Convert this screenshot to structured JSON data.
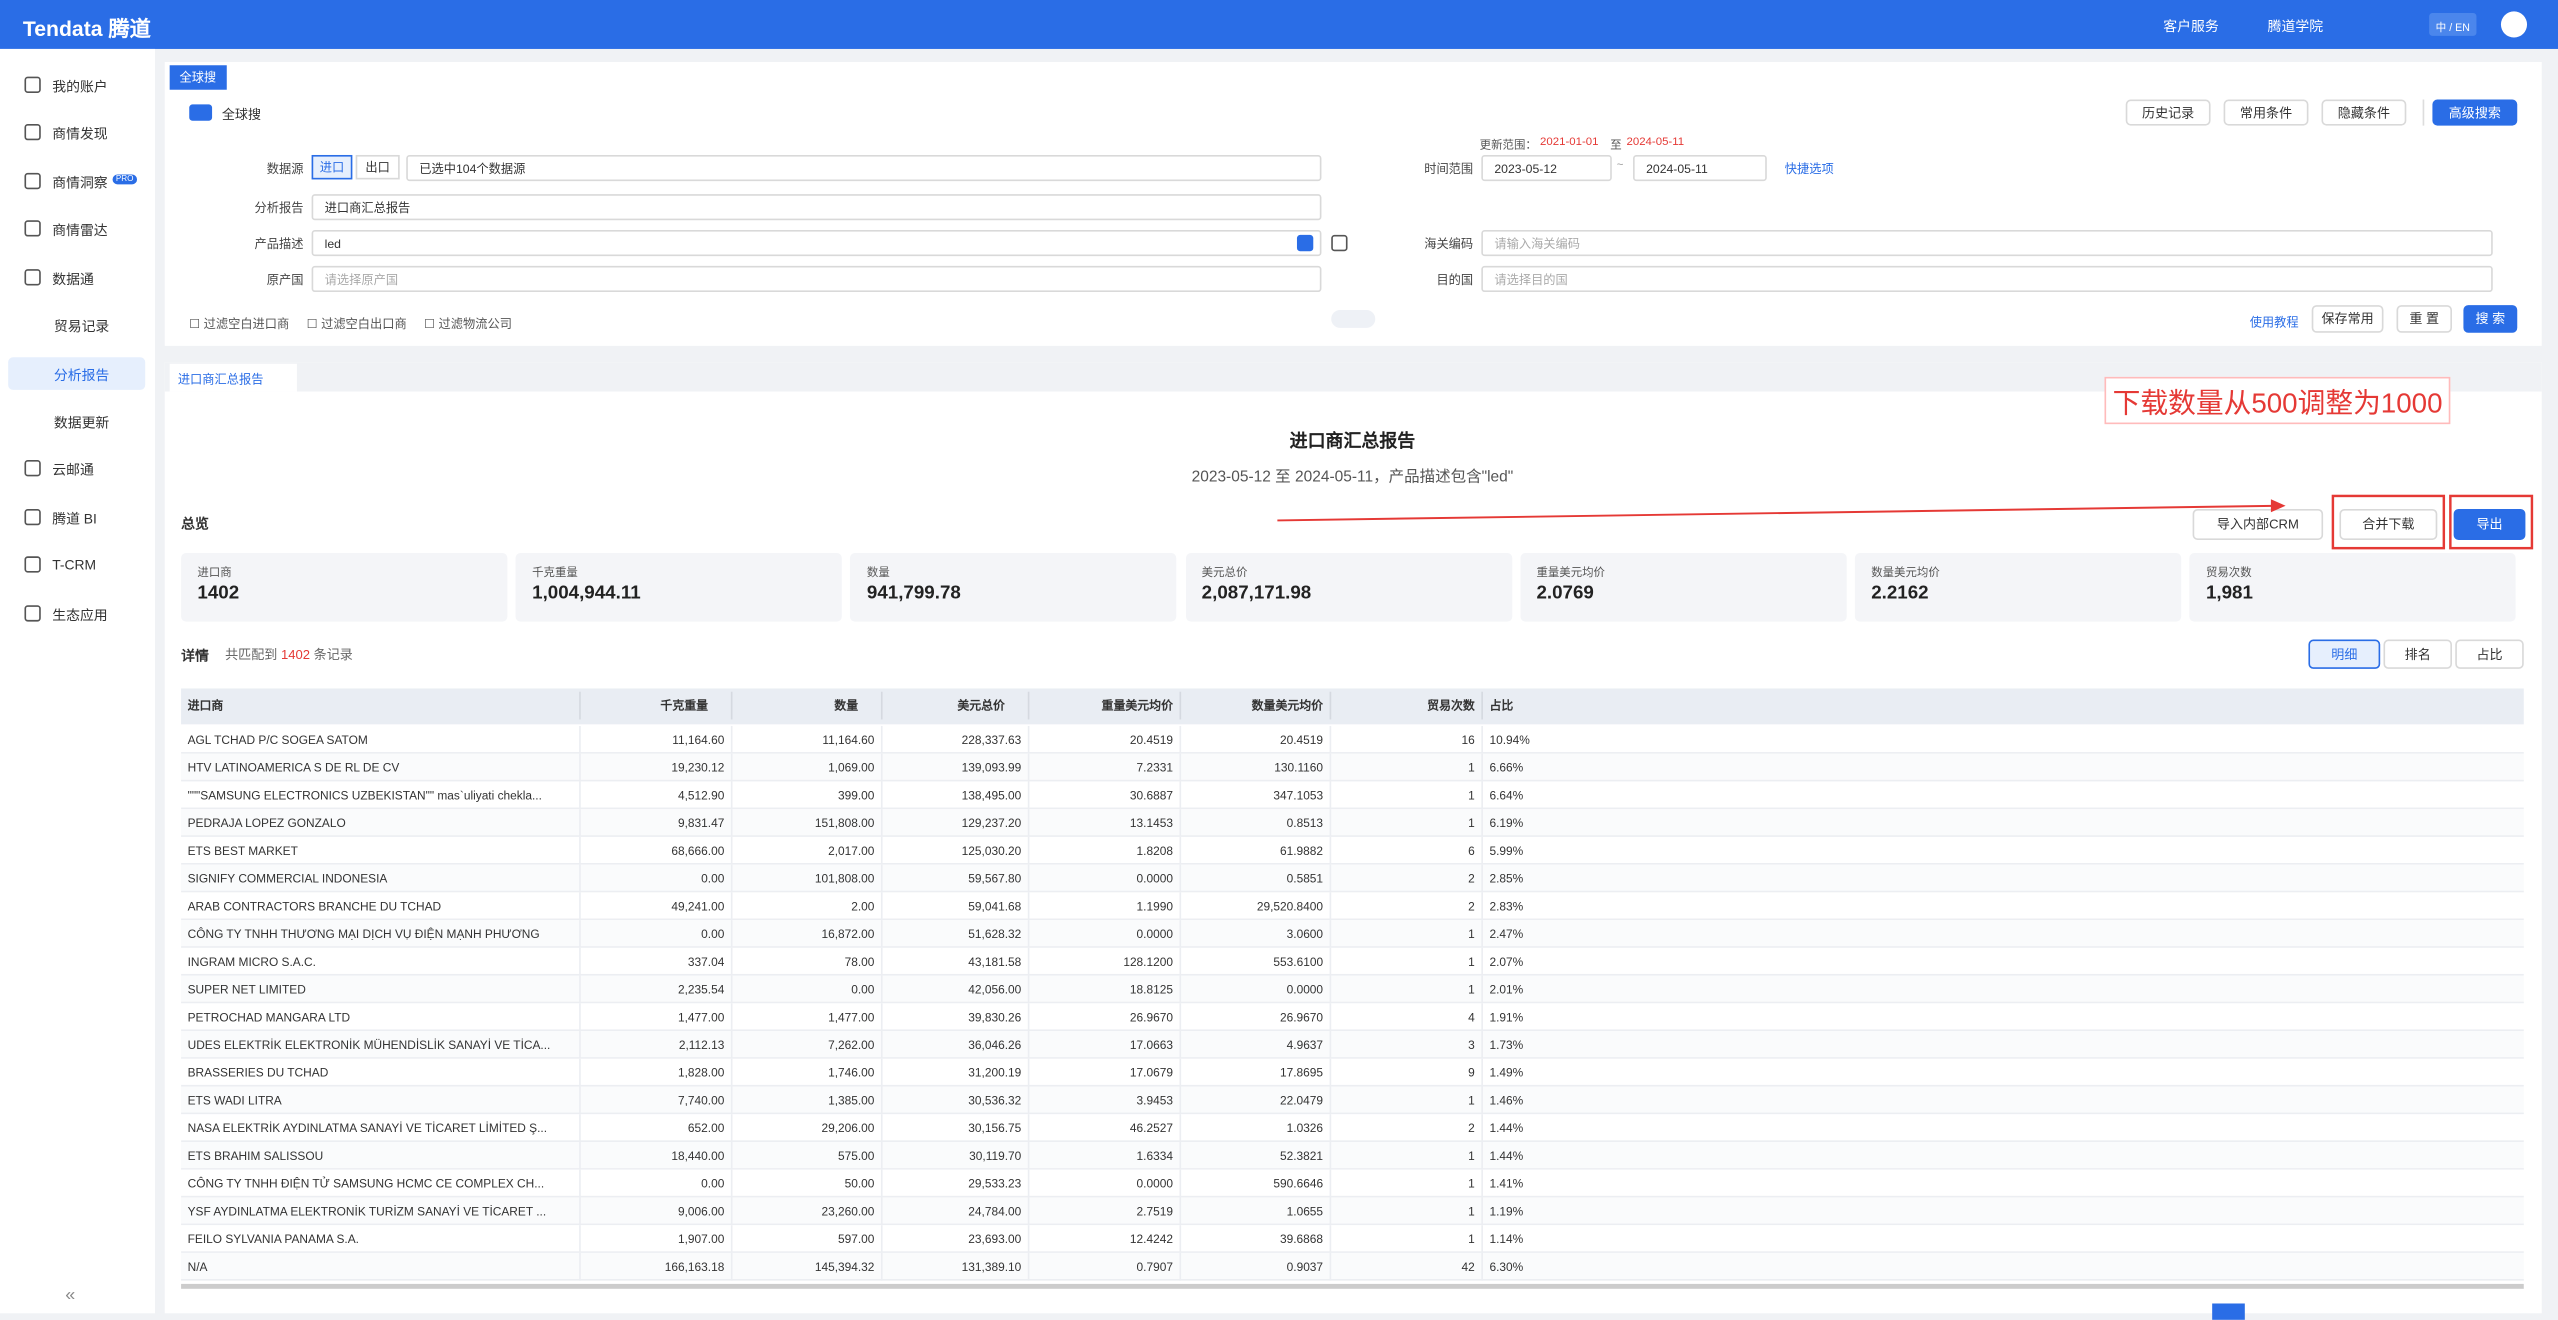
{
  "header": {
    "logo": "Tendata 腾道",
    "nav": [
      "客户服务",
      "腾道学院",
      "中 / EN"
    ]
  },
  "sidebar": {
    "items": [
      "我的账户",
      "商情发现",
      "商情洞察",
      "商情雷达",
      "数据通",
      "贸易记录",
      "分析报告",
      "数据更新",
      "云邮通",
      "腾道 BI",
      "T-CRM",
      "生态应用"
    ],
    "badge": "PRO"
  },
  "search": {
    "tab": "全球搜",
    "scope": "全球搜",
    "buttons": [
      "历史记录",
      "常用条件",
      "隐藏条件",
      "高级搜索"
    ],
    "labels": {
      "source": "数据源",
      "report": "分析报告",
      "product": "产品描述",
      "origin": "原产国",
      "time": "时间范围",
      "hs": "海关编码",
      "dest": "目的国",
      "update": "更新范围："
    },
    "source_toggle": [
      "进口",
      "出口"
    ],
    "source_value": "已选中104个数据源",
    "report_value": "进口商汇总报告",
    "product_value": "led",
    "origin_placeholder": "请选择原产国",
    "update_from": "2021-01-01",
    "update_to_word": "至",
    "update_to": "2024-05-11",
    "date_from": "2023-05-12",
    "date_sep": "~",
    "date_to": "2024-05-11",
    "quick": "快捷选项",
    "hs_placeholder": "请输入海关编码",
    "dest_placeholder": "请选择目的国",
    "filters": [
      "过滤空白进口商",
      "过滤空白出口商",
      "过滤物流公司"
    ],
    "actions": [
      "使用教程",
      "保存常用",
      "重 置",
      "搜 索"
    ]
  },
  "report": {
    "tab": "进口商汇总报告",
    "annotation": "下载数量从500调整为1000",
    "title": "进口商汇总报告",
    "subtitle": "2023-05-12 至 2024-05-11，产品描述包含\"led\"",
    "overview": "总览",
    "buttons": [
      "导入内部CRM",
      "合并下载",
      "导出"
    ],
    "stats": [
      [
        "进口商",
        "1402"
      ],
      [
        "千克重量",
        "1,004,944.11"
      ],
      [
        "数量",
        "941,799.78"
      ],
      [
        "美元总价",
        "2,087,171.98"
      ],
      [
        "重量美元均价",
        "2.0769"
      ],
      [
        "数量美元均价",
        "2.2162"
      ],
      [
        "贸易次数",
        "1,981"
      ]
    ],
    "detail": "详情",
    "match_prefix": "共匹配到",
    "match_count": "1402",
    "match_suffix": "条记录",
    "views": [
      "明细",
      "排名",
      "占比"
    ]
  },
  "table": {
    "columns": [
      "进口商",
      "千克重量",
      "数量",
      "美元总价",
      "重量美元均价",
      "数量美元均价",
      "贸易次数",
      "占比"
    ],
    "rows": [
      [
        "AGL TCHAD P/C SOGEA SATOM",
        "11,164.60",
        "11,164.60",
        "228,337.63",
        "20.4519",
        "20.4519",
        "16",
        "10.94%"
      ],
      [
        "HTV LATINOAMERICA S DE RL DE CV",
        "19,230.12",
        "1,069.00",
        "139,093.99",
        "7.2331",
        "130.1160",
        "1",
        "6.66%"
      ],
      [
        "\"\"\"SAMSUNG ELECTRONICS UZBEKISTAN\"\" mas`uliyati chekla...",
        "4,512.90",
        "399.00",
        "138,495.00",
        "30.6887",
        "347.1053",
        "1",
        "6.64%"
      ],
      [
        "PEDRAJA LOPEZ GONZALO",
        "9,831.47",
        "151,808.00",
        "129,237.20",
        "13.1453",
        "0.8513",
        "1",
        "6.19%"
      ],
      [
        "ETS BEST MARKET",
        "68,666.00",
        "2,017.00",
        "125,030.20",
        "1.8208",
        "61.9882",
        "6",
        "5.99%"
      ],
      [
        "SIGNIFY COMMERCIAL INDONESIA",
        "0.00",
        "101,808.00",
        "59,567.80",
        "0.0000",
        "0.5851",
        "2",
        "2.85%"
      ],
      [
        "ARAB CONTRACTORS BRANCHE DU TCHAD",
        "49,241.00",
        "2.00",
        "59,041.68",
        "1.1990",
        "29,520.8400",
        "2",
        "2.83%"
      ],
      [
        "CÔNG TY TNHH THƯƠNG MẠI DỊCH VỤ ĐIỆN MẠNH PHƯƠNG",
        "0.00",
        "16,872.00",
        "51,628.32",
        "0.0000",
        "3.0600",
        "1",
        "2.47%"
      ],
      [
        "INGRAM MICRO S.A.C.",
        "337.04",
        "78.00",
        "43,181.58",
        "128.1200",
        "553.6100",
        "1",
        "2.07%"
      ],
      [
        "SUPER NET LIMITED",
        "2,235.54",
        "0.00",
        "42,056.00",
        "18.8125",
        "0.0000",
        "1",
        "2.01%"
      ],
      [
        "PETROCHAD MANGARA LTD",
        "1,477.00",
        "1,477.00",
        "39,830.26",
        "26.9670",
        "26.9670",
        "4",
        "1.91%"
      ],
      [
        "UDES ELEKTRİK ELEKTRONİK MÜHENDİSLİK SANAYİ VE TİCA...",
        "2,112.13",
        "7,262.00",
        "36,046.26",
        "17.0663",
        "4.9637",
        "3",
        "1.73%"
      ],
      [
        "BRASSERIES DU TCHAD",
        "1,828.00",
        "1,746.00",
        "31,200.19",
        "17.0679",
        "17.8695",
        "9",
        "1.49%"
      ],
      [
        "ETS WADI LITRA",
        "7,740.00",
        "1,385.00",
        "30,536.32",
        "3.9453",
        "22.0479",
        "1",
        "1.46%"
      ],
      [
        "NASA ELEKTRİK AYDINLATMA SANAYİ VE TİCARET LİMİTED Ş...",
        "652.00",
        "29,206.00",
        "30,156.75",
        "46.2527",
        "1.0326",
        "2",
        "1.44%"
      ],
      [
        "ETS BRAHIM SALISSOU",
        "18,440.00",
        "575.00",
        "30,119.70",
        "1.6334",
        "52.3821",
        "1",
        "1.44%"
      ],
      [
        "CÔNG TY TNHH ĐIỆN TỬ SAMSUNG HCMC CE COMPLEX CH...",
        "0.00",
        "50.00",
        "29,533.23",
        "0.0000",
        "590.6646",
        "1",
        "1.41%"
      ],
      [
        "YSF AYDINLATMA ELEKTRONİK TURİZM SANAYİ VE TİCARET ...",
        "9,006.00",
        "23,260.00",
        "24,784.00",
        "2.7519",
        "1.0655",
        "1",
        "1.19%"
      ],
      [
        "FEILO SYLVANIA PANAMA S.A.",
        "1,907.00",
        "597.00",
        "23,693.00",
        "12.4242",
        "39.6868",
        "1",
        "1.14%"
      ],
      [
        "N/A",
        "166,163.18",
        "145,394.32",
        "131,389.10",
        "0.7907",
        "0.9037",
        "42",
        "6.30%"
      ]
    ]
  }
}
